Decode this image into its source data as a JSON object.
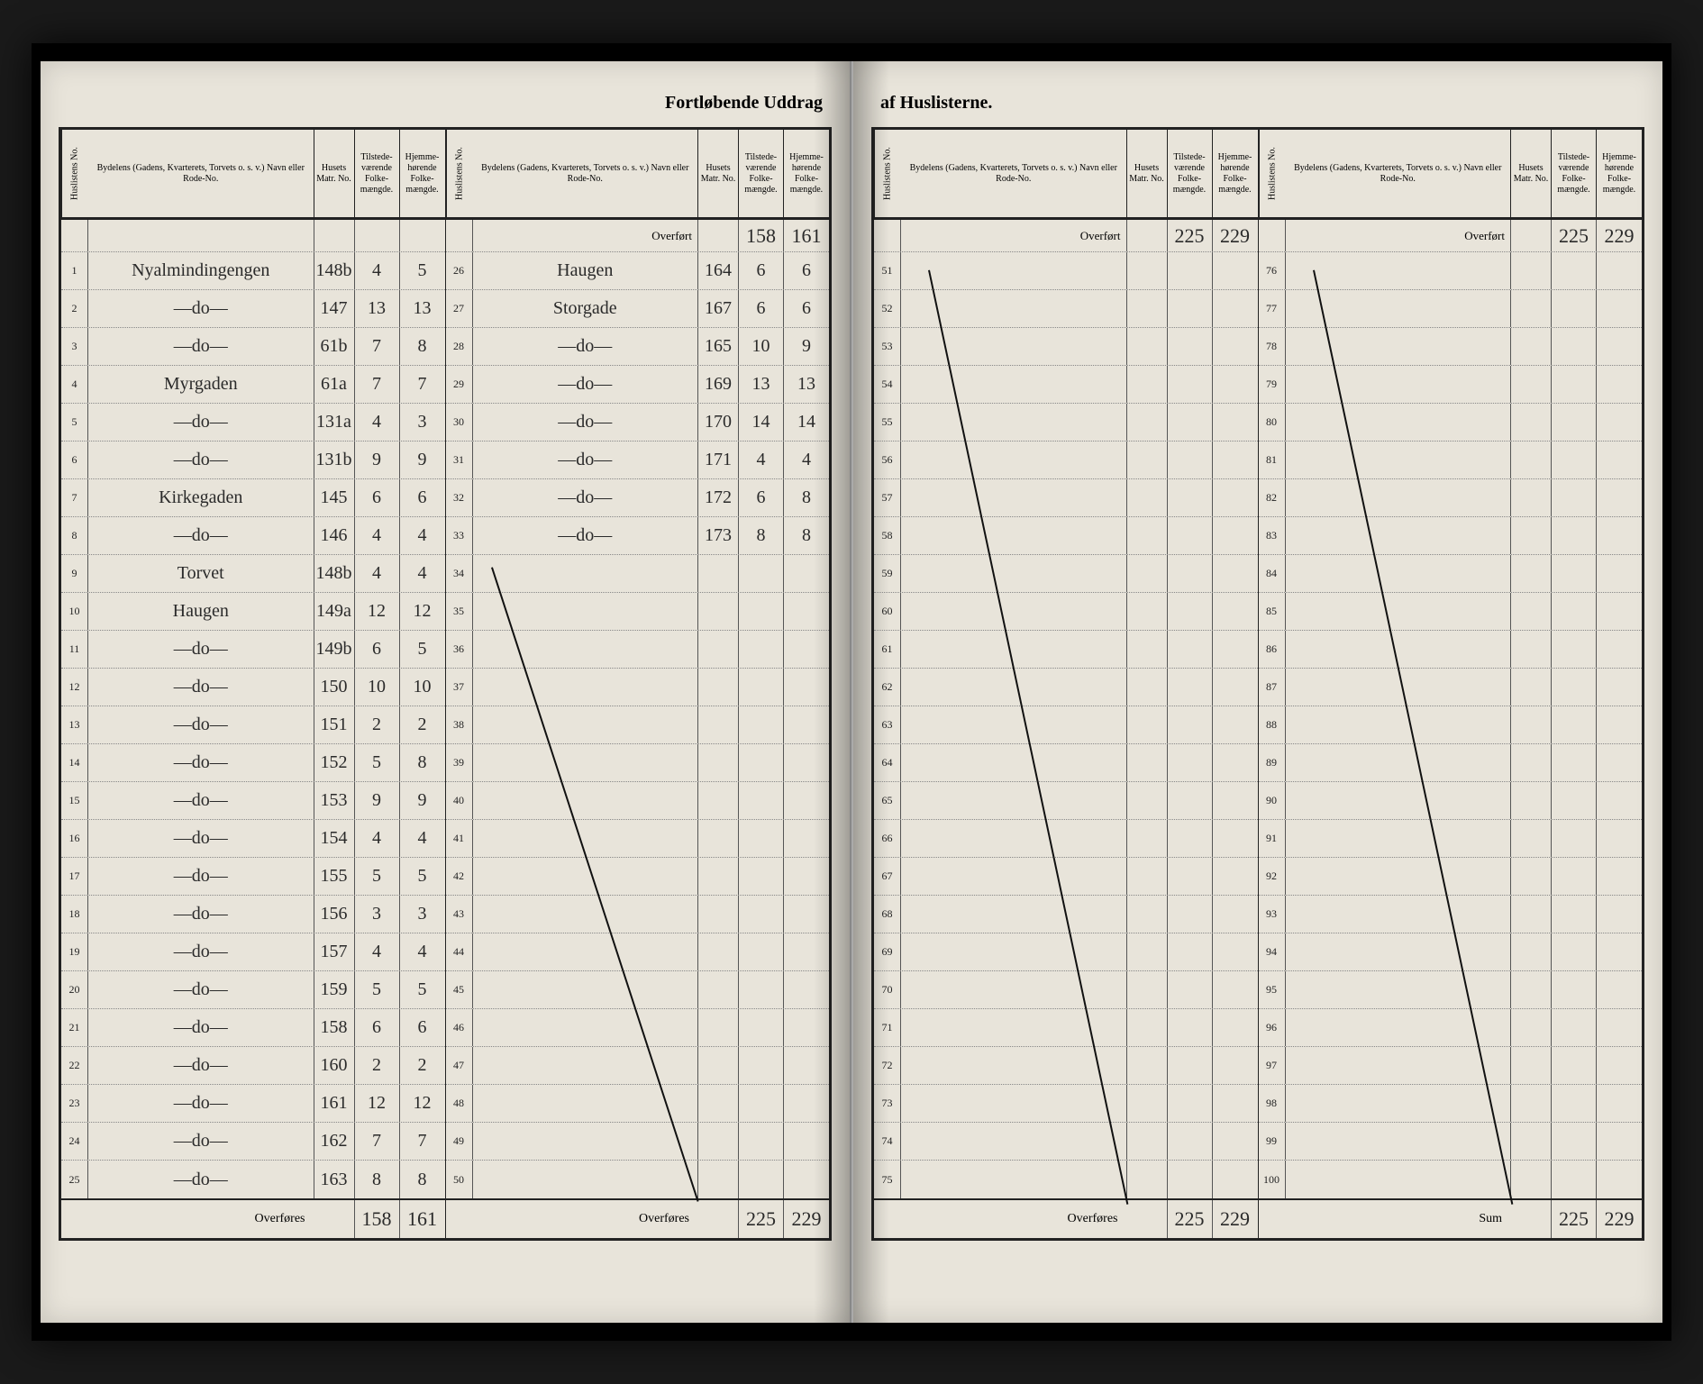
{
  "title_left": "Fortløbende Uddrag",
  "title_right": "af Huslisterne.",
  "headers": {
    "no": "Huslistens No.",
    "name": "Bydelens (Gadens, Kvarterets, Torvets o. s. v.) Navn eller Rode-No.",
    "matr": "Husets Matr. No.",
    "til": "Tilstede-værende Folke-mængde.",
    "hjem": "Hjemme-hørende Folke-mængde."
  },
  "overfort_label": "Overført",
  "overfores_label": "Overføres",
  "sum_label": "Sum",
  "sec1": {
    "rows": [
      {
        "n": "1",
        "name": "Nyalmindingengen",
        "m": "148b",
        "t": "4",
        "h": "5"
      },
      {
        "n": "2",
        "name": "—do—",
        "m": "147",
        "t": "13",
        "h": "13"
      },
      {
        "n": "3",
        "name": "—do—",
        "m": "61b",
        "t": "7",
        "h": "8"
      },
      {
        "n": "4",
        "name": "Myrgaden",
        "m": "61a",
        "t": "7",
        "h": "7"
      },
      {
        "n": "5",
        "name": "—do—",
        "m": "131a",
        "t": "4",
        "h": "3"
      },
      {
        "n": "6",
        "name": "—do—",
        "m": "131b",
        "t": "9",
        "h": "9"
      },
      {
        "n": "7",
        "name": "Kirkegaden",
        "m": "145",
        "t": "6",
        "h": "6"
      },
      {
        "n": "8",
        "name": "—do—",
        "m": "146",
        "t": "4",
        "h": "4"
      },
      {
        "n": "9",
        "name": "Torvet",
        "m": "148b",
        "t": "4",
        "h": "4"
      },
      {
        "n": "10",
        "name": "Haugen",
        "m": "149a",
        "t": "12",
        "h": "12"
      },
      {
        "n": "11",
        "name": "—do—",
        "m": "149b",
        "t": "6",
        "h": "5"
      },
      {
        "n": "12",
        "name": "—do—",
        "m": "150",
        "t": "10",
        "h": "10"
      },
      {
        "n": "13",
        "name": "—do—",
        "m": "151",
        "t": "2",
        "h": "2"
      },
      {
        "n": "14",
        "name": "—do—",
        "m": "152",
        "t": "5",
        "h": "8"
      },
      {
        "n": "15",
        "name": "—do—",
        "m": "153",
        "t": "9",
        "h": "9"
      },
      {
        "n": "16",
        "name": "—do—",
        "m": "154",
        "t": "4",
        "h": "4"
      },
      {
        "n": "17",
        "name": "—do—",
        "m": "155",
        "t": "5",
        "h": "5"
      },
      {
        "n": "18",
        "name": "—do—",
        "m": "156",
        "t": "3",
        "h": "3"
      },
      {
        "n": "19",
        "name": "—do—",
        "m": "157",
        "t": "4",
        "h": "4"
      },
      {
        "n": "20",
        "name": "—do—",
        "m": "159",
        "t": "5",
        "h": "5"
      },
      {
        "n": "21",
        "name": "—do—",
        "m": "158",
        "t": "6",
        "h": "6"
      },
      {
        "n": "22",
        "name": "—do—",
        "m": "160",
        "t": "2",
        "h": "2"
      },
      {
        "n": "23",
        "name": "—do—",
        "m": "161",
        "t": "12",
        "h": "12"
      },
      {
        "n": "24",
        "name": "—do—",
        "m": "162",
        "t": "7",
        "h": "7"
      },
      {
        "n": "25",
        "name": "—do—",
        "m": "163",
        "t": "8",
        "h": "8"
      }
    ],
    "foot_t": "158",
    "foot_h": "161"
  },
  "sec2": {
    "over_t": "158",
    "over_h": "161",
    "rows": [
      {
        "n": "26",
        "name": "Haugen",
        "m": "164",
        "t": "6",
        "h": "6"
      },
      {
        "n": "27",
        "name": "Storgade",
        "m": "167",
        "t": "6",
        "h": "6"
      },
      {
        "n": "28",
        "name": "—do—",
        "m": "165",
        "t": "10",
        "h": "9"
      },
      {
        "n": "29",
        "name": "—do—",
        "m": "169",
        "t": "13",
        "h": "13"
      },
      {
        "n": "30",
        "name": "—do—",
        "m": "170",
        "t": "14",
        "h": "14"
      },
      {
        "n": "31",
        "name": "—do—",
        "m": "171",
        "t": "4",
        "h": "4"
      },
      {
        "n": "32",
        "name": "—do—",
        "m": "172",
        "t": "6",
        "h": "8"
      },
      {
        "n": "33",
        "name": "—do—",
        "m": "173",
        "t": "8",
        "h": "8"
      },
      {
        "n": "34"
      },
      {
        "n": "35"
      },
      {
        "n": "36"
      },
      {
        "n": "37"
      },
      {
        "n": "38"
      },
      {
        "n": "39"
      },
      {
        "n": "40"
      },
      {
        "n": "41"
      },
      {
        "n": "42"
      },
      {
        "n": "43"
      },
      {
        "n": "44"
      },
      {
        "n": "45"
      },
      {
        "n": "46"
      },
      {
        "n": "47"
      },
      {
        "n": "48"
      },
      {
        "n": "49"
      },
      {
        "n": "50"
      }
    ],
    "foot_t": "225",
    "foot_h": "229"
  },
  "sec3": {
    "over_t": "225",
    "over_h": "229",
    "rows": [
      {
        "n": "51"
      },
      {
        "n": "52"
      },
      {
        "n": "53"
      },
      {
        "n": "54"
      },
      {
        "n": "55"
      },
      {
        "n": "56"
      },
      {
        "n": "57"
      },
      {
        "n": "58"
      },
      {
        "n": "59"
      },
      {
        "n": "60"
      },
      {
        "n": "61"
      },
      {
        "n": "62"
      },
      {
        "n": "63"
      },
      {
        "n": "64"
      },
      {
        "n": "65"
      },
      {
        "n": "66"
      },
      {
        "n": "67"
      },
      {
        "n": "68"
      },
      {
        "n": "69"
      },
      {
        "n": "70"
      },
      {
        "n": "71"
      },
      {
        "n": "72"
      },
      {
        "n": "73"
      },
      {
        "n": "74"
      },
      {
        "n": "75"
      }
    ],
    "foot_t": "225",
    "foot_h": "229"
  },
  "sec4": {
    "over_t": "225",
    "over_h": "229",
    "rows": [
      {
        "n": "76"
      },
      {
        "n": "77"
      },
      {
        "n": "78"
      },
      {
        "n": "79"
      },
      {
        "n": "80"
      },
      {
        "n": "81"
      },
      {
        "n": "82"
      },
      {
        "n": "83"
      },
      {
        "n": "84"
      },
      {
        "n": "85"
      },
      {
        "n": "86"
      },
      {
        "n": "87"
      },
      {
        "n": "88"
      },
      {
        "n": "89"
      },
      {
        "n": "90"
      },
      {
        "n": "91"
      },
      {
        "n": "92"
      },
      {
        "n": "93"
      },
      {
        "n": "94"
      },
      {
        "n": "95"
      },
      {
        "n": "96"
      },
      {
        "n": "97"
      },
      {
        "n": "98"
      },
      {
        "n": "99"
      },
      {
        "n": "100"
      }
    ],
    "foot_t": "225",
    "foot_h": "229"
  }
}
